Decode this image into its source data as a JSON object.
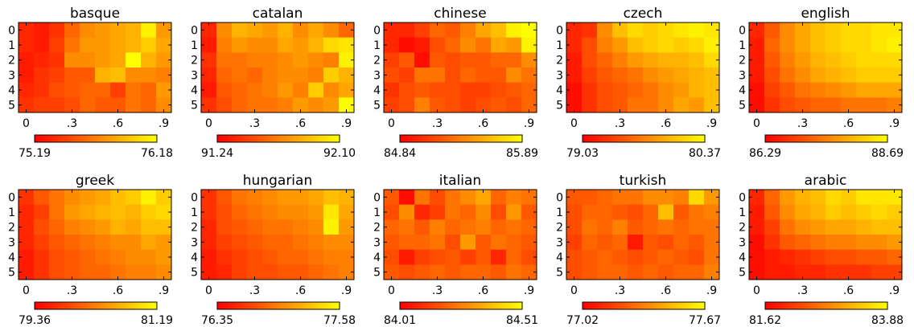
{
  "chart_data": [
    {
      "type": "heatmap",
      "title": "basque",
      "x_ticks": [
        "0",
        ".3",
        ".6",
        ".9"
      ],
      "y_ticks": [
        "0",
        "1",
        "2",
        "3",
        "4",
        "5"
      ],
      "colorbar": {
        "min": "75.19",
        "max": "76.18"
      },
      "values": [
        [
          0.15,
          0.1,
          0.2,
          0.4,
          0.55,
          0.6,
          0.65,
          0.7,
          0.95,
          0.6
        ],
        [
          0.15,
          0.1,
          0.25,
          0.45,
          0.6,
          0.6,
          0.65,
          0.7,
          0.8,
          0.65
        ],
        [
          0.1,
          0.15,
          0.2,
          0.55,
          0.55,
          0.6,
          0.65,
          1.0,
          0.7,
          0.6
        ],
        [
          0.1,
          0.2,
          0.25,
          0.35,
          0.35,
          0.7,
          0.75,
          0.55,
          0.55,
          0.5
        ],
        [
          0.15,
          0.2,
          0.3,
          0.35,
          0.4,
          0.4,
          0.25,
          0.45,
          0.4,
          0.6
        ],
        [
          0.2,
          0.25,
          0.25,
          0.3,
          0.4,
          0.35,
          0.35,
          0.45,
          0.4,
          0.55
        ]
      ]
    },
    {
      "type": "heatmap",
      "title": "catalan",
      "x_ticks": [
        "0",
        ".3",
        ".6",
        ".9"
      ],
      "y_ticks": [
        "0",
        "1",
        "2",
        "3",
        "4",
        "5"
      ],
      "colorbar": {
        "min": "91.24",
        "max": "92.10"
      },
      "values": [
        [
          0.15,
          0.55,
          0.7,
          0.65,
          0.6,
          0.7,
          0.55,
          0.65,
          0.55,
          0.4
        ],
        [
          0.1,
          0.5,
          0.6,
          0.55,
          0.55,
          0.65,
          0.6,
          0.7,
          0.85,
          0.9
        ],
        [
          0.2,
          0.45,
          0.45,
          0.5,
          0.5,
          0.55,
          0.6,
          0.55,
          0.5,
          0.95
        ],
        [
          0.15,
          0.4,
          0.45,
          0.4,
          0.5,
          0.55,
          0.55,
          0.5,
          0.8,
          0.7
        ],
        [
          0.1,
          0.35,
          0.4,
          0.45,
          0.5,
          0.6,
          0.5,
          0.8,
          0.55,
          0.65
        ],
        [
          0.2,
          0.3,
          0.4,
          0.45,
          0.45,
          0.5,
          0.6,
          0.55,
          0.6,
          1.0
        ]
      ]
    },
    {
      "type": "heatmap",
      "title": "chinese",
      "x_ticks": [
        "0",
        ".3",
        ".6",
        ".9"
      ],
      "y_ticks": [
        "0",
        "1",
        "2",
        "3",
        "4",
        "5"
      ],
      "colorbar": {
        "min": "84.84",
        "max": "85.89"
      },
      "values": [
        [
          0.15,
          0.15,
          0.25,
          0.4,
          0.35,
          0.5,
          0.65,
          0.75,
          0.95,
          1.0
        ],
        [
          0.15,
          0.05,
          0.1,
          0.3,
          0.4,
          0.55,
          0.45,
          0.65,
          0.6,
          0.95
        ],
        [
          0.25,
          0.35,
          0.05,
          0.35,
          0.3,
          0.35,
          0.35,
          0.4,
          0.4,
          0.55
        ],
        [
          0.3,
          0.25,
          0.45,
          0.45,
          0.3,
          0.4,
          0.35,
          0.35,
          0.55,
          0.45
        ],
        [
          0.2,
          0.3,
          0.35,
          0.3,
          0.3,
          0.25,
          0.25,
          0.3,
          0.35,
          0.4
        ],
        [
          0.25,
          0.3,
          0.5,
          0.35,
          0.3,
          0.25,
          0.3,
          0.35,
          0.3,
          0.4
        ]
      ]
    },
    {
      "type": "heatmap",
      "title": "czech",
      "x_ticks": [
        "0",
        ".3",
        ".6",
        ".9"
      ],
      "y_ticks": [
        "0",
        "1",
        "2",
        "3",
        "4",
        "5"
      ],
      "colorbar": {
        "min": "79.03",
        "max": "80.37"
      },
      "values": [
        [
          0.15,
          0.2,
          0.55,
          0.75,
          0.85,
          0.8,
          0.85,
          0.9,
          0.95,
          0.9
        ],
        [
          0.15,
          0.3,
          0.5,
          0.6,
          0.75,
          0.8,
          0.85,
          0.8,
          0.85,
          0.95
        ],
        [
          0.1,
          0.3,
          0.4,
          0.5,
          0.6,
          0.65,
          0.7,
          0.7,
          0.75,
          0.85
        ],
        [
          0.1,
          0.25,
          0.35,
          0.4,
          0.45,
          0.55,
          0.6,
          0.65,
          0.7,
          0.75
        ],
        [
          0.05,
          0.2,
          0.3,
          0.35,
          0.4,
          0.45,
          0.55,
          0.6,
          0.7,
          0.75
        ],
        [
          0.05,
          0.2,
          0.3,
          0.35,
          0.45,
          0.45,
          0.55,
          0.65,
          0.6,
          0.75
        ]
      ]
    },
    {
      "type": "heatmap",
      "title": "english",
      "x_ticks": [
        "0",
        ".3",
        ".6",
        ".9"
      ],
      "y_ticks": [
        "0",
        "1",
        "2",
        "3",
        "4",
        "5"
      ],
      "colorbar": {
        "min": "86.29",
        "max": "88.69"
      },
      "values": [
        [
          0.15,
          0.35,
          0.55,
          0.65,
          0.75,
          0.8,
          0.85,
          0.85,
          0.9,
          0.9
        ],
        [
          0.1,
          0.4,
          0.55,
          0.65,
          0.75,
          0.8,
          0.85,
          0.85,
          0.9,
          0.95
        ],
        [
          0.1,
          0.35,
          0.5,
          0.6,
          0.7,
          0.75,
          0.8,
          0.85,
          0.85,
          0.85
        ],
        [
          0.1,
          0.3,
          0.45,
          0.55,
          0.65,
          0.7,
          0.75,
          0.8,
          0.8,
          0.8
        ],
        [
          0.05,
          0.25,
          0.35,
          0.45,
          0.5,
          0.55,
          0.6,
          0.65,
          0.65,
          0.65
        ],
        [
          0.05,
          0.2,
          0.3,
          0.35,
          0.4,
          0.4,
          0.45,
          0.45,
          0.45,
          0.5
        ]
      ]
    },
    {
      "type": "heatmap",
      "title": "greek",
      "x_ticks": [
        "0",
        ".3",
        ".6",
        ".9"
      ],
      "y_ticks": [
        "0",
        "1",
        "2",
        "3",
        "4",
        "5"
      ],
      "colorbar": {
        "min": "79.36",
        "max": "81.19"
      },
      "values": [
        [
          0.2,
          0.35,
          0.45,
          0.55,
          0.6,
          0.65,
          0.75,
          0.8,
          0.95,
          0.8
        ],
        [
          0.15,
          0.25,
          0.45,
          0.6,
          0.65,
          0.7,
          0.75,
          0.7,
          0.8,
          0.85
        ],
        [
          0.15,
          0.3,
          0.4,
          0.5,
          0.55,
          0.6,
          0.7,
          0.65,
          0.75,
          0.75
        ],
        [
          0.15,
          0.25,
          0.35,
          0.4,
          0.45,
          0.5,
          0.55,
          0.55,
          0.65,
          0.6
        ],
        [
          0.1,
          0.2,
          0.3,
          0.35,
          0.4,
          0.45,
          0.5,
          0.55,
          0.55,
          0.6
        ],
        [
          0.1,
          0.2,
          0.3,
          0.35,
          0.4,
          0.4,
          0.45,
          0.5,
          0.5,
          0.55
        ]
      ]
    },
    {
      "type": "heatmap",
      "title": "hungarian",
      "x_ticks": [
        "0",
        ".3",
        ".6",
        ".9"
      ],
      "y_ticks": [
        "0",
        "1",
        "2",
        "3",
        "4",
        "5"
      ],
      "colorbar": {
        "min": "76.35",
        "max": "77.58"
      },
      "values": [
        [
          0.2,
          0.35,
          0.45,
          0.5,
          0.55,
          0.6,
          0.6,
          0.65,
          0.75,
          0.7
        ],
        [
          0.2,
          0.3,
          0.4,
          0.45,
          0.5,
          0.55,
          0.55,
          0.6,
          0.9,
          0.65
        ],
        [
          0.15,
          0.3,
          0.35,
          0.4,
          0.45,
          0.45,
          0.5,
          0.55,
          0.95,
          0.6
        ],
        [
          0.15,
          0.25,
          0.3,
          0.35,
          0.4,
          0.4,
          0.45,
          0.5,
          0.55,
          0.55
        ],
        [
          0.1,
          0.2,
          0.25,
          0.3,
          0.35,
          0.4,
          0.4,
          0.45,
          0.5,
          0.5
        ],
        [
          0.1,
          0.15,
          0.25,
          0.3,
          0.3,
          0.35,
          0.35,
          0.4,
          0.45,
          0.5
        ]
      ]
    },
    {
      "type": "heatmap",
      "title": "italian",
      "x_ticks": [
        "0",
        ".3",
        ".6",
        ".9"
      ],
      "y_ticks": [
        "0",
        "1",
        "2",
        "3",
        "4",
        "5"
      ],
      "colorbar": {
        "min": "84.01",
        "max": "84.51"
      },
      "values": [
        [
          0.35,
          0.05,
          0.45,
          0.3,
          0.45,
          0.55,
          0.65,
          0.4,
          0.5,
          0.45
        ],
        [
          0.3,
          0.55,
          0.15,
          0.25,
          0.45,
          0.4,
          0.55,
          0.3,
          0.6,
          0.35
        ],
        [
          0.4,
          0.45,
          0.35,
          0.5,
          0.4,
          0.45,
          0.5,
          0.4,
          0.45,
          0.4
        ],
        [
          0.35,
          0.4,
          0.4,
          0.45,
          0.3,
          0.6,
          0.35,
          0.45,
          0.4,
          0.35
        ],
        [
          0.3,
          0.1,
          0.25,
          0.3,
          0.35,
          0.25,
          0.35,
          0.15,
          0.4,
          0.3
        ],
        [
          0.35,
          0.3,
          0.35,
          0.4,
          0.35,
          0.4,
          0.4,
          0.35,
          0.45,
          0.4
        ]
      ]
    },
    {
      "type": "heatmap",
      "title": "turkish",
      "x_ticks": [
        "0",
        ".3",
        ".6",
        ".9"
      ],
      "y_ticks": [
        "0",
        "1",
        "2",
        "3",
        "4",
        "5"
      ],
      "colorbar": {
        "min": "77.02",
        "max": "77.67"
      },
      "values": [
        [
          0.35,
          0.35,
          0.4,
          0.45,
          0.45,
          0.55,
          0.55,
          0.5,
          0.85,
          0.6
        ],
        [
          0.3,
          0.4,
          0.4,
          0.35,
          0.3,
          0.4,
          0.75,
          0.35,
          0.45,
          0.5
        ],
        [
          0.3,
          0.45,
          0.4,
          0.5,
          0.35,
          0.4,
          0.45,
          0.4,
          0.45,
          0.45
        ],
        [
          0.25,
          0.4,
          0.35,
          0.4,
          0.1,
          0.35,
          0.3,
          0.4,
          0.35,
          0.45
        ],
        [
          0.3,
          0.35,
          0.4,
          0.35,
          0.3,
          0.35,
          0.4,
          0.35,
          0.3,
          0.45
        ],
        [
          0.3,
          0.35,
          0.4,
          0.4,
          0.35,
          0.4,
          0.35,
          0.4,
          0.4,
          0.5
        ]
      ]
    },
    {
      "type": "heatmap",
      "title": "arabic",
      "x_ticks": [
        "0",
        ".3",
        ".6",
        ".9"
      ],
      "y_ticks": [
        "0",
        "1",
        "2",
        "3",
        "4",
        "5"
      ],
      "colorbar": {
        "min": "81.62",
        "max": "83.88"
      },
      "values": [
        [
          0.15,
          0.4,
          0.6,
          0.7,
          0.75,
          0.85,
          0.8,
          0.9,
          0.9,
          0.9
        ],
        [
          0.1,
          0.35,
          0.55,
          0.65,
          0.7,
          0.8,
          0.75,
          0.8,
          0.85,
          0.8
        ],
        [
          0.1,
          0.25,
          0.45,
          0.55,
          0.6,
          0.65,
          0.65,
          0.7,
          0.75,
          0.75
        ],
        [
          0.05,
          0.2,
          0.35,
          0.4,
          0.45,
          0.5,
          0.5,
          0.55,
          0.55,
          0.6
        ],
        [
          0.05,
          0.1,
          0.15,
          0.2,
          0.25,
          0.3,
          0.3,
          0.35,
          0.35,
          0.4
        ],
        [
          0.05,
          0.1,
          0.1,
          0.15,
          0.15,
          0.2,
          0.2,
          0.2,
          0.25,
          0.25
        ]
      ]
    }
  ]
}
